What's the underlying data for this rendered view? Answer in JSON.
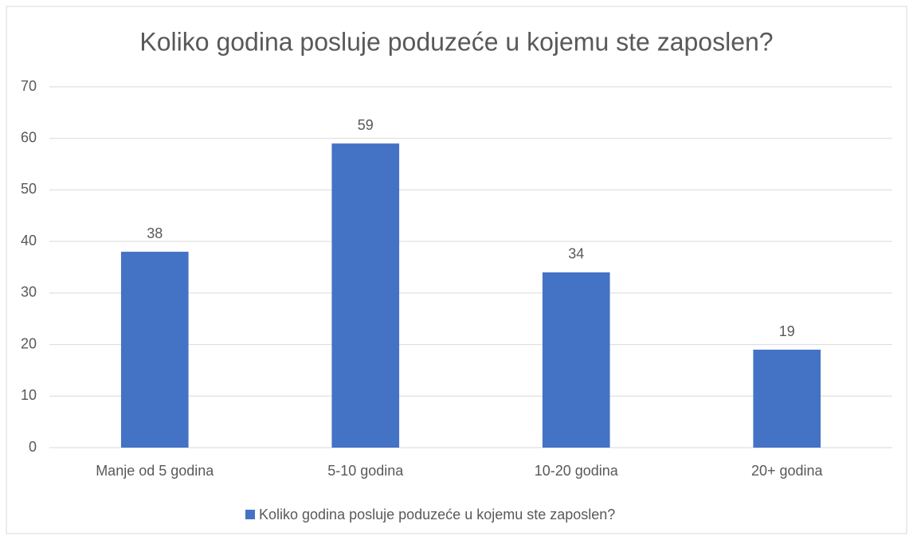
{
  "chart_data": {
    "type": "bar",
    "title": "Koliko godina posluje poduzeće u kojemu ste zaposlen?",
    "categories": [
      "Manje od 5 godina",
      "5-10 godina",
      "10-20 godina",
      "20+ godina"
    ],
    "series": [
      {
        "name": "Koliko godina posluje poduzeće u kojemu ste zaposlen?",
        "color": "#4472c4",
        "values": [
          38,
          59,
          34,
          19
        ]
      }
    ],
    "ylim": [
      0,
      70
    ],
    "yticks": [
      0,
      10,
      20,
      30,
      40,
      50,
      60,
      70
    ],
    "grid": true,
    "legend": "bottom"
  }
}
